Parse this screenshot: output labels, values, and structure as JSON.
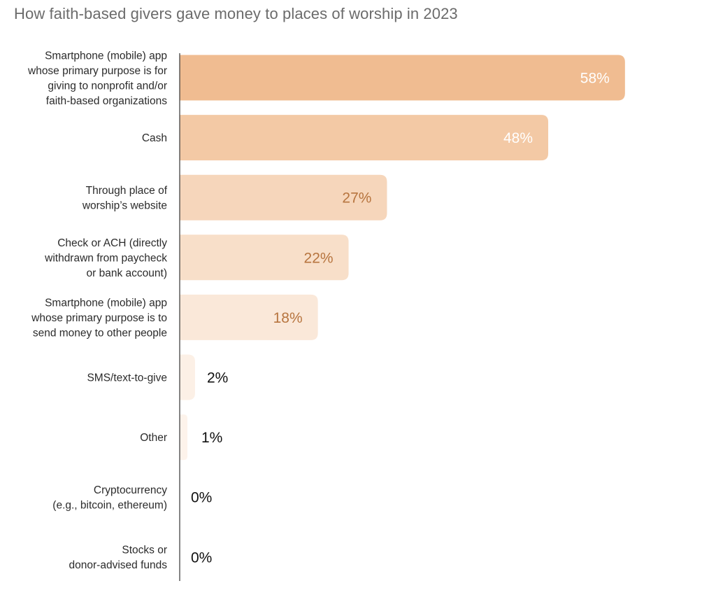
{
  "chart_data": {
    "type": "bar",
    "orientation": "horizontal",
    "title": "How faith-based givers gave money to places of worship in 2023",
    "categories": [
      [
        "Smartphone (mobile) app",
        "whose primary purpose is for",
        "giving to nonprofit and/or",
        "faith-based organizations"
      ],
      [
        "Cash"
      ],
      [
        "Through place of",
        "worship’s website"
      ],
      [
        "Check or ACH (directly",
        "withdrawn from paycheck",
        "or bank account)"
      ],
      [
        "Smartphone (mobile) app",
        "whose primary purpose is to",
        "send money to other people"
      ],
      [
        "SMS/text-to-give"
      ],
      [
        "Other"
      ],
      [
        "Cryptocurrency",
        "(e.g., bitcoin, ethereum)"
      ],
      [
        "Stocks or",
        "donor-advised funds"
      ]
    ],
    "values": [
      58,
      48,
      27,
      22,
      18,
      2,
      1,
      0,
      0
    ],
    "value_labels": [
      "58%",
      "48%",
      "27%",
      "22%",
      "18%",
      "2%",
      "1%",
      "0%",
      "0%"
    ],
    "bar_colors": [
      "#f0bc91",
      "#f3c9a5",
      "#f6d6bb",
      "#f8dfc9",
      "#fae8d9",
      "#fcf0e6",
      "#fdf3eb",
      "#fdf5ef",
      "#fdf5ef"
    ],
    "label_colors": [
      "#ffffff",
      "#ffffff",
      "#b7753f",
      "#b7753f",
      "#b7753f",
      "#111111",
      "#111111",
      "#111111",
      "#111111"
    ],
    "axis_color": "#444444",
    "grid": false,
    "legend": "none"
  }
}
